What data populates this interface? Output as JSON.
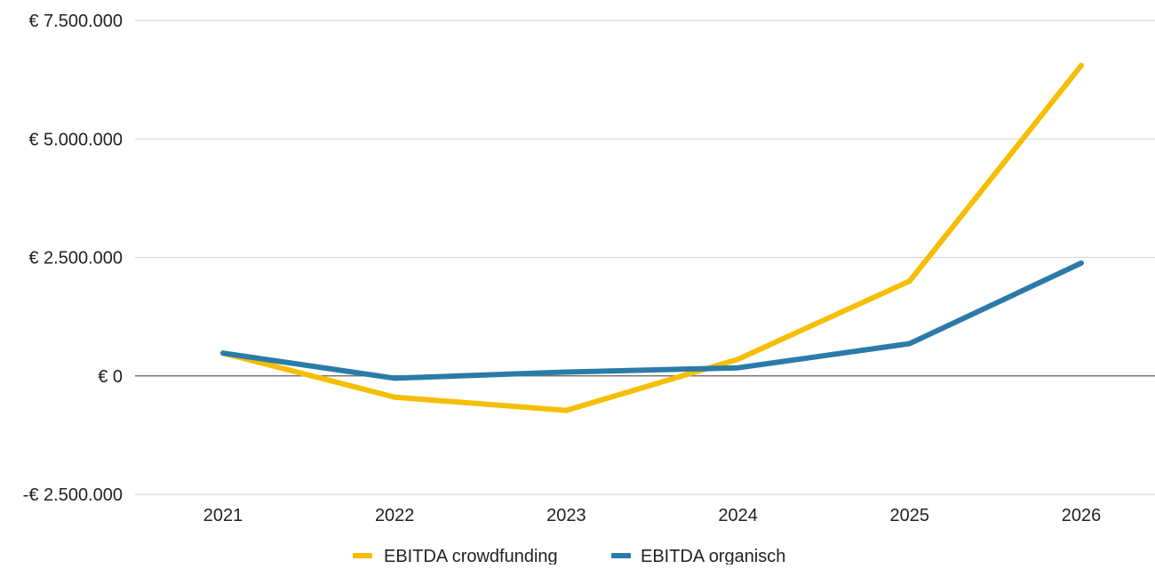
{
  "chart_data": {
    "type": "line",
    "title": "",
    "xlabel": "",
    "ylabel": "",
    "x": [
      "2021",
      "2022",
      "2023",
      "2024",
      "2025",
      "2026"
    ],
    "ylim": [
      -2500000,
      7500000
    ],
    "y_ticks": [
      -2500000,
      0,
      2500000,
      5000000,
      7500000
    ],
    "y_tick_labels": [
      "-€ 2.500.000",
      "€ 0",
      "€ 2.500.000",
      "€ 5.000.000",
      "€ 7.500.000"
    ],
    "grid": true,
    "legend_position": "bottom",
    "series": [
      {
        "name": "EBITDA crowdfunding",
        "color": "#F5BE00",
        "values": [
          480000,
          -450000,
          -730000,
          350000,
          2000000,
          6550000
        ]
      },
      {
        "name": "EBITDA organisch",
        "color": "#2B7BA8",
        "values": [
          480000,
          -50000,
          80000,
          170000,
          680000,
          2380000
        ]
      }
    ]
  }
}
